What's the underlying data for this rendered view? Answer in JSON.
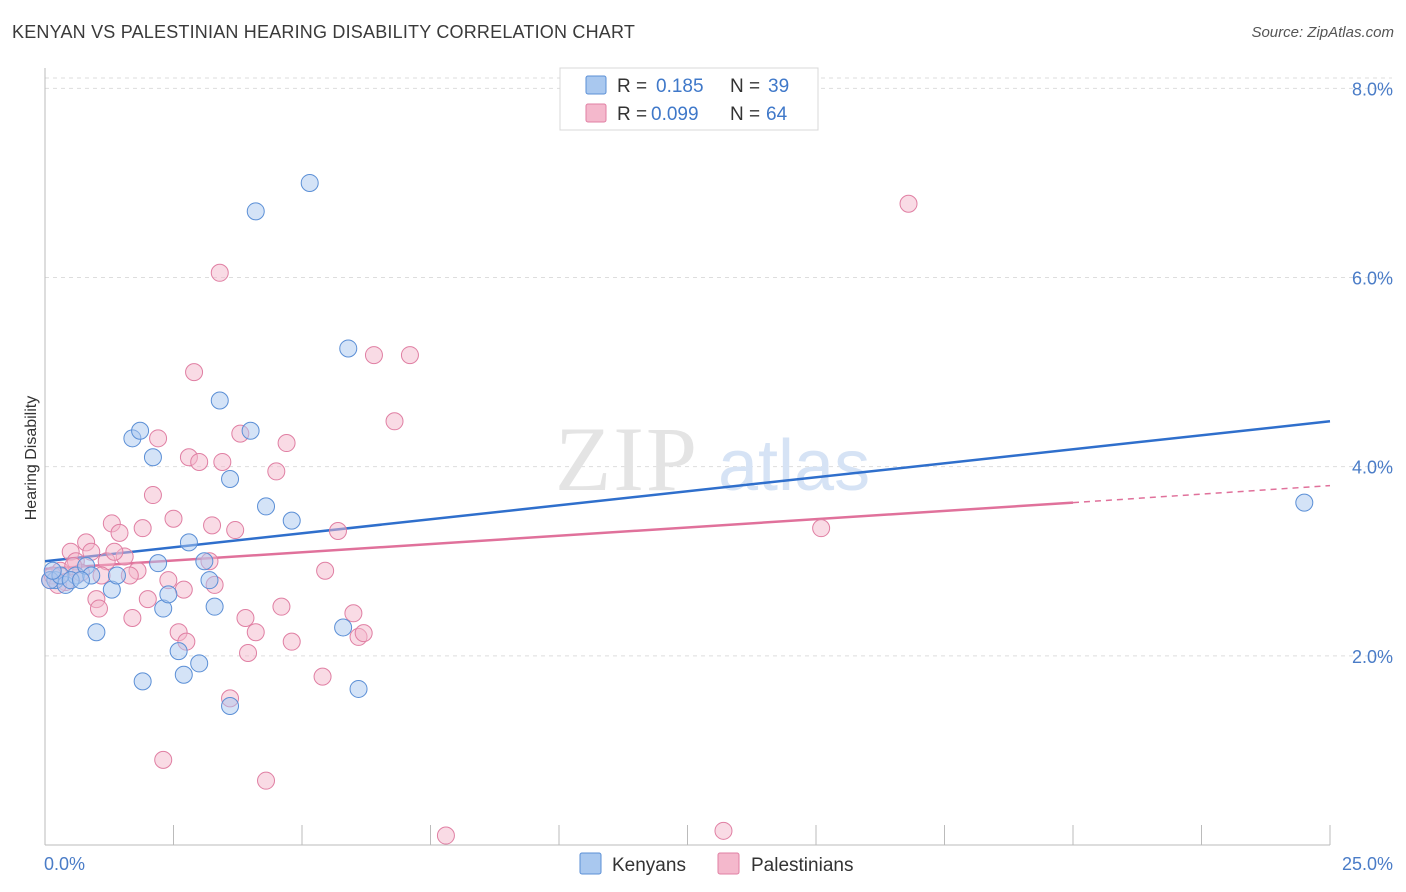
{
  "header": {
    "title": "KENYAN VS PALESTINIAN HEARING DISABILITY CORRELATION CHART",
    "source": "Source: ZipAtlas.com"
  },
  "watermark": {
    "zip": "ZIP",
    "atlas": "atlas"
  },
  "legend_box": {
    "rows": [
      {
        "r_label": "R =",
        "r_value": "0.185",
        "n_label": "N =",
        "n_value": "39"
      },
      {
        "r_label": "R =",
        "r_value": "0.099",
        "n_label": "N =",
        "n_value": "64"
      }
    ]
  },
  "bottom_legend": [
    "Kenyans",
    "Palestinians"
  ],
  "colors": {
    "kenyan_fill": "#a9c8ef",
    "kenyan_stroke": "#5b8fd6",
    "kenyan_line": "#2f6fcc",
    "palestinian_fill": "#f4b8cc",
    "palestinian_stroke": "#e07fa3",
    "palestinian_line": "#e0719b",
    "tick_text": "#4a7cc7",
    "grid": "#dddddd"
  },
  "chart_data": {
    "type": "scatter",
    "title": "KENYAN VS PALESTINIAN HEARING DISABILITY CORRELATION CHART",
    "xlabel": "",
    "ylabel": "Hearing Disability",
    "xlim": [
      0,
      25
    ],
    "ylim": [
      0,
      8.3
    ],
    "x_tick_labels": [
      "0.0%",
      "25.0%"
    ],
    "y_ticks": [
      2,
      4,
      6,
      8
    ],
    "y_tick_labels": [
      "2.0%",
      "4.0%",
      "6.0%",
      "8.0%"
    ],
    "grid": true,
    "series": [
      {
        "name": "Kenyans",
        "trend": {
          "x": [
            0,
            25
          ],
          "y": [
            3.0,
            4.48
          ]
        },
        "points": [
          [
            0.2,
            2.8
          ],
          [
            0.4,
            2.75
          ],
          [
            0.6,
            2.85
          ],
          [
            0.8,
            2.95
          ],
          [
            0.9,
            2.85
          ],
          [
            1.0,
            2.25
          ],
          [
            1.3,
            2.7
          ],
          [
            1.4,
            2.85
          ],
          [
            1.7,
            4.3
          ],
          [
            1.85,
            4.38
          ],
          [
            2.1,
            4.1
          ],
          [
            2.2,
            2.98
          ],
          [
            2.3,
            2.5
          ],
          [
            2.4,
            2.65
          ],
          [
            2.6,
            2.05
          ],
          [
            2.7,
            1.8
          ],
          [
            2.8,
            3.2
          ],
          [
            3.0,
            1.92
          ],
          [
            3.1,
            3.0
          ],
          [
            3.2,
            2.8
          ],
          [
            3.3,
            2.52
          ],
          [
            3.4,
            4.7
          ],
          [
            3.6,
            3.87
          ],
          [
            3.6,
            1.47
          ],
          [
            4.0,
            4.38
          ],
          [
            4.1,
            6.7
          ],
          [
            4.3,
            3.58
          ],
          [
            4.8,
            3.43
          ],
          [
            5.15,
            7.0
          ],
          [
            5.8,
            2.3
          ],
          [
            5.9,
            5.25
          ],
          [
            6.1,
            1.65
          ],
          [
            24.5,
            3.62
          ],
          [
            0.1,
            2.8
          ],
          [
            0.3,
            2.85
          ],
          [
            1.9,
            1.73
          ],
          [
            0.5,
            2.8
          ],
          [
            0.15,
            2.9
          ],
          [
            0.7,
            2.8
          ]
        ]
      },
      {
        "name": "Palestinians",
        "trend": {
          "x": [
            0,
            20
          ],
          "y": [
            2.92,
            3.62
          ]
        },
        "trend_dashed": {
          "x": [
            20,
            25
          ],
          "y": [
            3.62,
            3.8
          ]
        },
        "points": [
          [
            0.1,
            2.8
          ],
          [
            0.3,
            2.9
          ],
          [
            0.5,
            3.1
          ],
          [
            0.6,
            3.0
          ],
          [
            0.8,
            3.2
          ],
          [
            1.0,
            2.6
          ],
          [
            1.05,
            2.5
          ],
          [
            1.2,
            3.0
          ],
          [
            1.3,
            3.4
          ],
          [
            1.45,
            3.3
          ],
          [
            1.55,
            3.05
          ],
          [
            1.7,
            2.4
          ],
          [
            1.8,
            2.9
          ],
          [
            1.9,
            3.35
          ],
          [
            2.0,
            2.6
          ],
          [
            2.1,
            3.7
          ],
          [
            2.2,
            4.3
          ],
          [
            2.3,
            0.9
          ],
          [
            2.4,
            2.8
          ],
          [
            2.5,
            3.45
          ],
          [
            2.6,
            2.25
          ],
          [
            2.7,
            2.7
          ],
          [
            2.75,
            2.15
          ],
          [
            2.8,
            4.1
          ],
          [
            2.9,
            5.0
          ],
          [
            3.0,
            4.05
          ],
          [
            3.2,
            3.0
          ],
          [
            3.25,
            3.38
          ],
          [
            3.3,
            2.75
          ],
          [
            3.4,
            6.05
          ],
          [
            3.45,
            4.05
          ],
          [
            3.6,
            1.55
          ],
          [
            3.7,
            3.33
          ],
          [
            3.8,
            4.35
          ],
          [
            3.9,
            2.4
          ],
          [
            3.95,
            2.03
          ],
          [
            4.1,
            2.25
          ],
          [
            4.3,
            0.68
          ],
          [
            4.5,
            3.95
          ],
          [
            4.6,
            2.52
          ],
          [
            4.7,
            4.25
          ],
          [
            4.8,
            2.15
          ],
          [
            5.4,
            1.78
          ],
          [
            5.45,
            2.9
          ],
          [
            5.7,
            3.32
          ],
          [
            6.0,
            2.45
          ],
          [
            6.1,
            2.2
          ],
          [
            6.2,
            2.24
          ],
          [
            6.4,
            5.18
          ],
          [
            6.8,
            4.48
          ],
          [
            7.1,
            5.18
          ],
          [
            7.8,
            0.1
          ],
          [
            13.2,
            0.15
          ],
          [
            15.1,
            3.35
          ],
          [
            16.8,
            6.78
          ],
          [
            0.15,
            2.85
          ],
          [
            0.4,
            2.78
          ],
          [
            0.7,
            2.88
          ],
          [
            0.9,
            3.1
          ],
          [
            1.1,
            2.85
          ],
          [
            1.35,
            3.1
          ],
          [
            1.65,
            2.85
          ],
          [
            0.25,
            2.75
          ],
          [
            0.55,
            2.95
          ]
        ]
      }
    ]
  }
}
